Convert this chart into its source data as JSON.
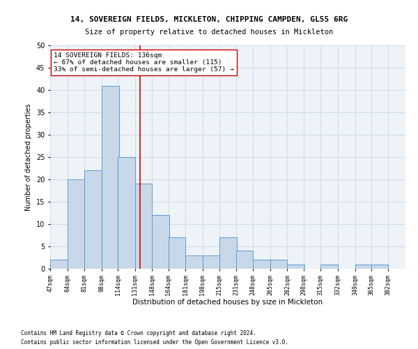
{
  "title1": "14, SOVEREIGN FIELDS, MICKLETON, CHIPPING CAMPDEN, GL55 6RG",
  "title2": "Size of property relative to detached houses in Mickleton",
  "xlabel": "Distribution of detached houses by size in Mickleton",
  "ylabel": "Number of detached properties",
  "bin_edges": [
    47,
    64,
    81,
    98,
    114,
    131,
    148,
    164,
    181,
    198,
    215,
    231,
    248,
    265,
    282,
    298,
    315,
    332,
    349,
    365,
    382
  ],
  "bar_heights": [
    2,
    20,
    22,
    41,
    25,
    19,
    12,
    7,
    3,
    3,
    7,
    4,
    2,
    2,
    1,
    0,
    1,
    0,
    1,
    1
  ],
  "bar_color": "#c8d8e8",
  "bar_edgecolor": "#5b9bd5",
  "grid_color": "#d0dce8",
  "property_size": 136,
  "vline_color": "#cc0000",
  "annotation_line1": "14 SOVEREIGN FIELDS: 136sqm",
  "annotation_line2": "← 67% of detached houses are smaller (115)",
  "annotation_line3": "33% of semi-detached houses are larger (57) →",
  "annotation_box_edgecolor": "#cc0000",
  "annotation_box_facecolor": "#ffffff",
  "ylim": [
    0,
    50
  ],
  "yticks": [
    0,
    5,
    10,
    15,
    20,
    25,
    30,
    35,
    40,
    45,
    50
  ],
  "footer1": "Contains HM Land Registry data © Crown copyright and database right 2024.",
  "footer2": "Contains public sector information licensed under the Open Government Licence v3.0.",
  "bg_color": "#ffffff",
  "axes_bg_color": "#eef3f8",
  "title1_fontsize": 8.0,
  "title2_fontsize": 7.5,
  "xlabel_fontsize": 7.5,
  "ylabel_fontsize": 7.0,
  "xtick_fontsize": 6.0,
  "ytick_fontsize": 7.0,
  "annotation_fontsize": 6.8,
  "footer_fontsize": 5.5
}
